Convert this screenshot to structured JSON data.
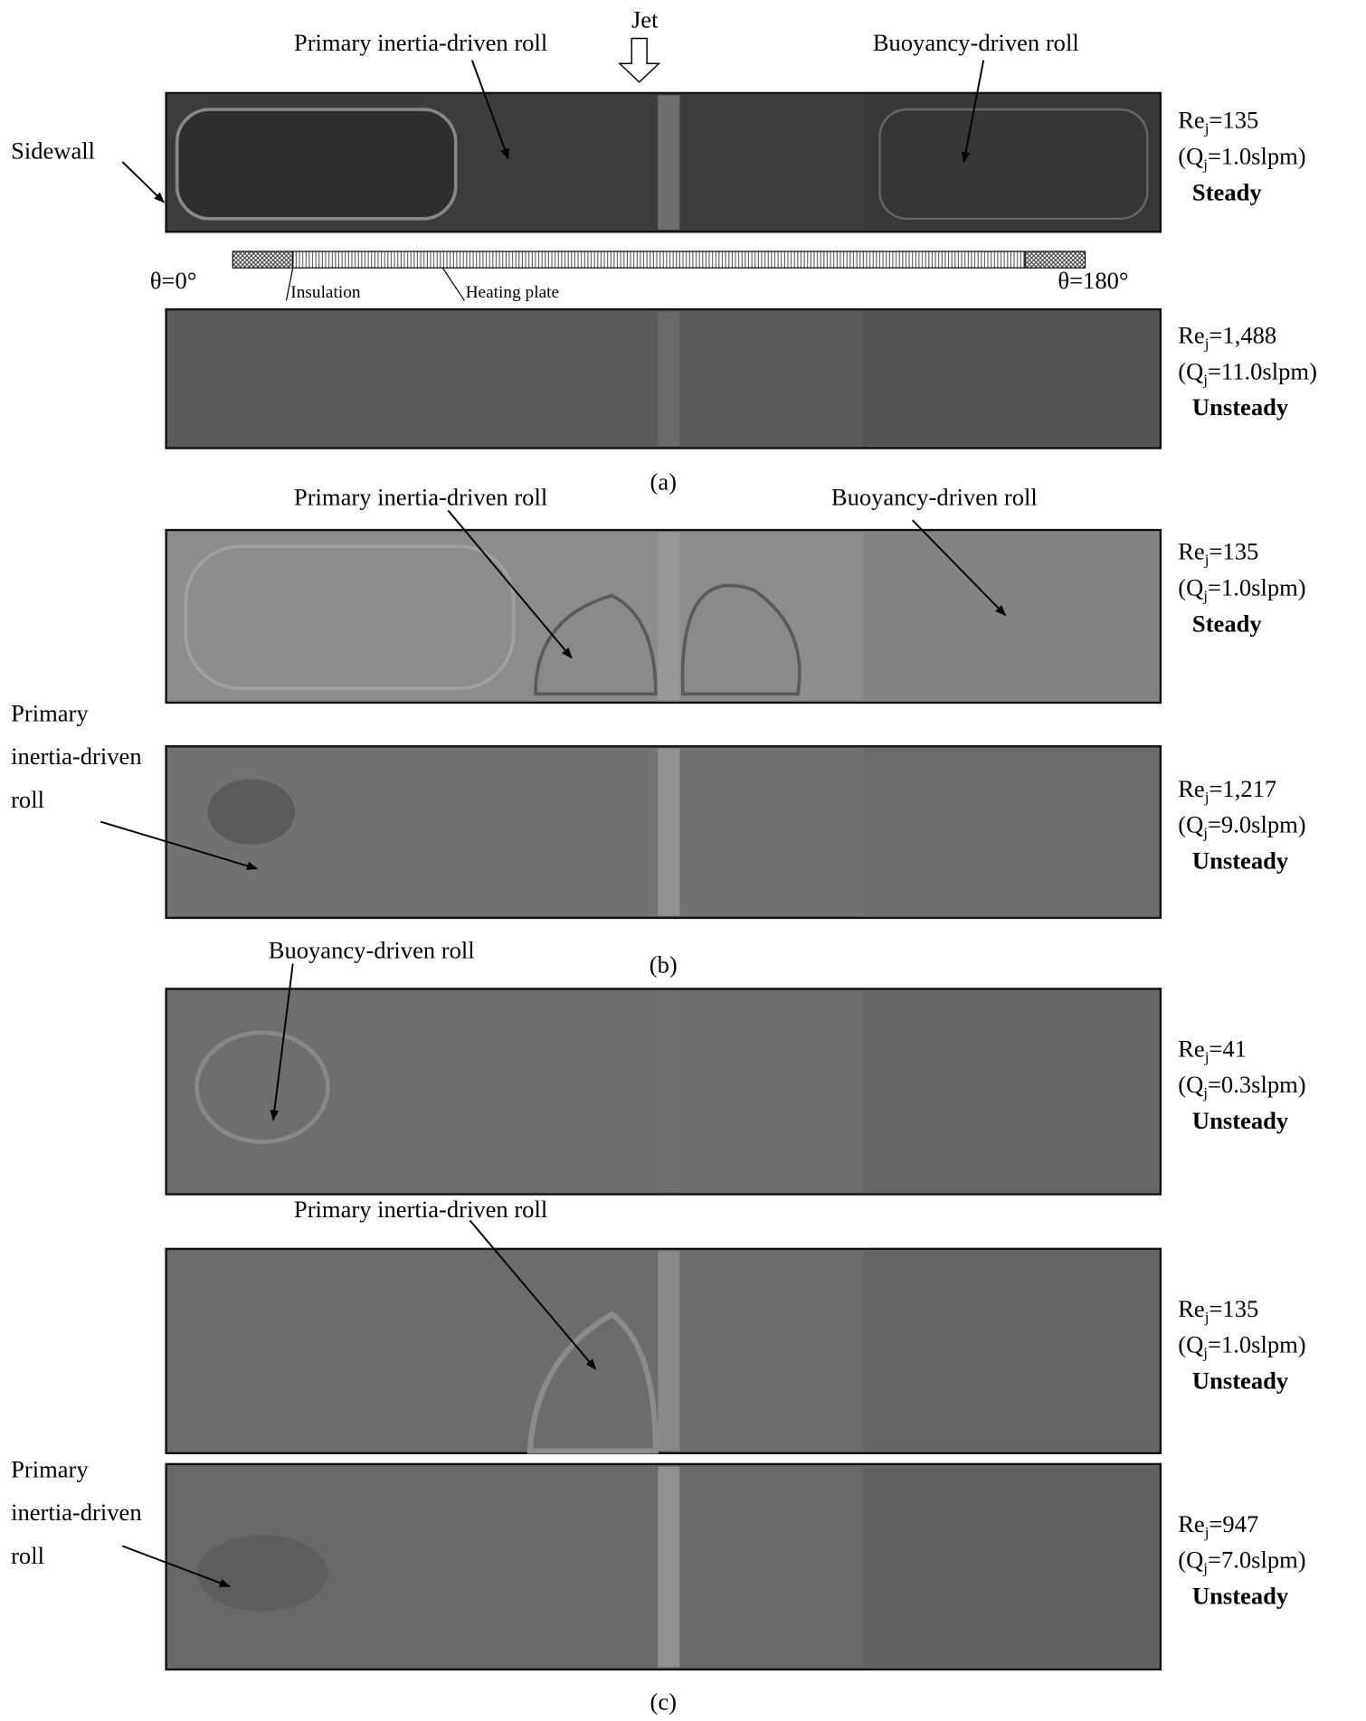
{
  "jet_label": "Jet",
  "angles": {
    "start": "θ=0°",
    "end": "θ=180°"
  },
  "heater": {
    "insulation": "Insulation",
    "heating_plate": "Heating plate"
  },
  "captions": [
    "(a)",
    "(b)",
    "(c)"
  ],
  "annotations": [
    {
      "lines": [
        "Primary inertia-driven roll"
      ]
    },
    {
      "lines": [
        "Buoyancy-driven roll"
      ]
    },
    {
      "lines": [
        "Sidewall"
      ]
    },
    {
      "lines": [
        "Primary inertia-driven roll"
      ]
    },
    {
      "lines": [
        "Buoyancy-driven roll"
      ]
    },
    {
      "lines": [
        "Primary",
        "inertia-driven",
        "roll"
      ]
    },
    {
      "lines": [
        "Buoyancy-driven roll"
      ]
    },
    {
      "lines": [
        "Primary inertia-driven roll"
      ]
    },
    {
      "lines": [
        "Primary",
        "inertia-driven",
        "roll"
      ]
    }
  ],
  "panels": [
    {
      "re": [
        "Re",
        "j",
        "=135"
      ],
      "q": [
        "(Q",
        "j",
        "=1.0slpm)"
      ],
      "state": "Steady"
    },
    {
      "re": [
        "Re",
        "j",
        "=1,488"
      ],
      "q": [
        "(Q",
        "j",
        "=11.0slpm)"
      ],
      "state": "Unsteady"
    },
    {
      "re": [
        "Re",
        "j",
        "=135"
      ],
      "q": [
        "(Q",
        "j",
        "=1.0slpm)"
      ],
      "state": "Steady"
    },
    {
      "re": [
        "Re",
        "j",
        "=1,217"
      ],
      "q": [
        "(Q",
        "j",
        "=9.0slpm)"
      ],
      "state": "Unsteady"
    },
    {
      "re": [
        "Re",
        "j",
        "=41"
      ],
      "q": [
        "(Q",
        "j",
        "=0.3slpm)"
      ],
      "state": "Unsteady"
    },
    {
      "re": [
        "Re",
        "j",
        "=135"
      ],
      "q": [
        "(Q",
        "j",
        "=1.0slpm)"
      ],
      "state": "Unsteady"
    },
    {
      "re": [
        "Re",
        "j",
        "=947"
      ],
      "q": [
        "(Q",
        "j",
        "=7.0slpm)"
      ],
      "state": "Unsteady"
    }
  ]
}
